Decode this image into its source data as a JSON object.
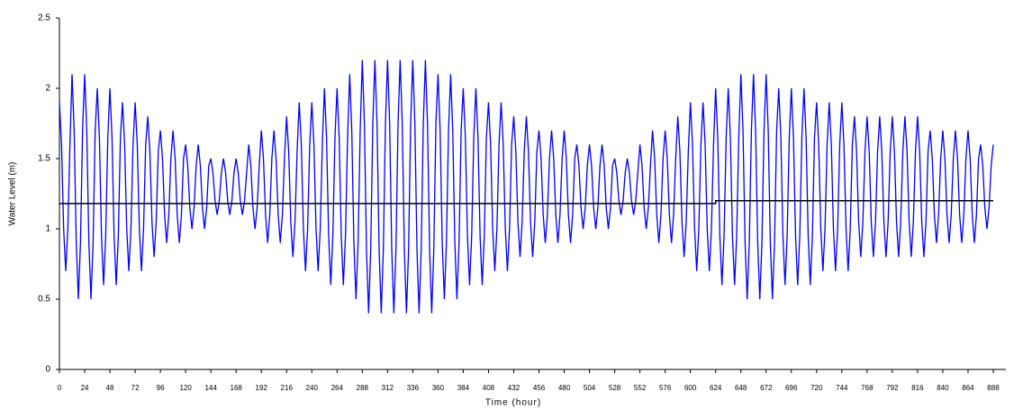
{
  "chart_data": {
    "type": "line",
    "xlabel": "Time (hour)",
    "ylabel": "Water Level (m)",
    "xlim": [
      0,
      900
    ],
    "ylim": [
      0,
      2.5
    ],
    "xticks": [
      0,
      24,
      48,
      72,
      96,
      120,
      144,
      168,
      192,
      216,
      240,
      264,
      288,
      312,
      336,
      360,
      384,
      408,
      432,
      456,
      480,
      504,
      528,
      552,
      576,
      600,
      624,
      648,
      672,
      696,
      720,
      744,
      768,
      792,
      816,
      840,
      864,
      888
    ],
    "yticks": [
      0,
      0.5,
      1,
      1.5,
      2,
      2.5
    ],
    "x": [
      0,
      2,
      4,
      6,
      8,
      10,
      12,
      14,
      16,
      18,
      20,
      22,
      24,
      26,
      28,
      30,
      32,
      34,
      36,
      38,
      40,
      42,
      44,
      46,
      48,
      50,
      52,
      54,
      56,
      58,
      60,
      62,
      64,
      66,
      68,
      70,
      72,
      74,
      76,
      78,
      80,
      82,
      84,
      86,
      88,
      90,
      92,
      94,
      96,
      98,
      100,
      102,
      104,
      106,
      108,
      110,
      112,
      114,
      116,
      118,
      120,
      122,
      124,
      126,
      128,
      130,
      132,
      134,
      136,
      138,
      140,
      142,
      144,
      146,
      148,
      150,
      152,
      154,
      156,
      158,
      160,
      162,
      164,
      166,
      168,
      170,
      172,
      174,
      176,
      178,
      180,
      182,
      184,
      186,
      188,
      190,
      192,
      194,
      196,
      198,
      200,
      202,
      204,
      206,
      208,
      210,
      212,
      214,
      216,
      218,
      220,
      222,
      224,
      226,
      228,
      230,
      232,
      234,
      236,
      238,
      240,
      242,
      244,
      246,
      248,
      250,
      252,
      254,
      256,
      258,
      260,
      262,
      264,
      266,
      268,
      270,
      272,
      274,
      276,
      278,
      280,
      282,
      284,
      286,
      288,
      290,
      292,
      294,
      296,
      298,
      300,
      302,
      304,
      306,
      308,
      310,
      312,
      314,
      316,
      318,
      320,
      322,
      324,
      326,
      328,
      330,
      332,
      334,
      336,
      338,
      340,
      342,
      344,
      346,
      348,
      350,
      352,
      354,
      356,
      358,
      360,
      362,
      364,
      366,
      368,
      370,
      372,
      374,
      376,
      378,
      380,
      382,
      384,
      386,
      388,
      390,
      392,
      394,
      396,
      398,
      400,
      402,
      404,
      406,
      408,
      410,
      412,
      414,
      416,
      418,
      420,
      422,
      424,
      426,
      428,
      430,
      432,
      434,
      436,
      438,
      440,
      442,
      444,
      446,
      448,
      450,
      452,
      454,
      456,
      458,
      460,
      462,
      464,
      466,
      468,
      470,
      472,
      474,
      476,
      478,
      480,
      482,
      484,
      486,
      488,
      490,
      492,
      494,
      496,
      498,
      500,
      502,
      504,
      506,
      508,
      510,
      512,
      514,
      516,
      518,
      520,
      522,
      524,
      526,
      528,
      530,
      532,
      534,
      536,
      538,
      540,
      542,
      544,
      546,
      548,
      550,
      552,
      554,
      556,
      558,
      560,
      562,
      564,
      566,
      568,
      570,
      572,
      574,
      576,
      578,
      580,
      582,
      584,
      586,
      588,
      590,
      592,
      594,
      596,
      598,
      600,
      602,
      604,
      606,
      608,
      610,
      612,
      614,
      616,
      618,
      620,
      622,
      624,
      626,
      628,
      630,
      632,
      634,
      636,
      638,
      640,
      642,
      644,
      646,
      648,
      650,
      652,
      654,
      656,
      658,
      660,
      662,
      664,
      666,
      668,
      670,
      672,
      674,
      676,
      678,
      680,
      682,
      684,
      686,
      688,
      690,
      692,
      694,
      696,
      698,
      700,
      702,
      704,
      706,
      708,
      710,
      712,
      714,
      716,
      718,
      720,
      722,
      724,
      726,
      728,
      730,
      732,
      734,
      736,
      738,
      740,
      742,
      744,
      746,
      748,
      750,
      752,
      754,
      756,
      758,
      760,
      762,
      764,
      766,
      768,
      770,
      772,
      774,
      776,
      778,
      780,
      782,
      784,
      786,
      788,
      790,
      792,
      794,
      796,
      798,
      800,
      802,
      804,
      806,
      808,
      810,
      812,
      814,
      816,
      818,
      820,
      822,
      824,
      826,
      828,
      830,
      832,
      834,
      836,
      838,
      840,
      842,
      844,
      846,
      848,
      850,
      852,
      854,
      856,
      858,
      860,
      862,
      864,
      866,
      868,
      870,
      872,
      874,
      876,
      878,
      880,
      882,
      884,
      886,
      888
    ],
    "series": [
      {
        "color": "#0000ff",
        "values": [
          1.9,
          1.6,
          1,
          0.7,
          1,
          1.6,
          2.1,
          1.7,
          0.9,
          0.5,
          0.9,
          1.7,
          2.1,
          1.7,
          0.9,
          0.5,
          0.9,
          1.7,
          2,
          1.65,
          0.95,
          0.6,
          0.95,
          1.65,
          2,
          1.65,
          0.95,
          0.6,
          0.95,
          1.65,
          1.9,
          1.6,
          1,
          0.7,
          1,
          1.6,
          1.9,
          1.6,
          1,
          0.7,
          1,
          1.6,
          1.8,
          1.55,
          1.05,
          0.8,
          1.05,
          1.55,
          1.7,
          1.5,
          1.1,
          0.9,
          1.1,
          1.5,
          1.7,
          1.5,
          1.1,
          0.9,
          1.1,
          1.5,
          1.6,
          1.45,
          1.15,
          1,
          1.15,
          1.45,
          1.6,
          1.45,
          1.15,
          1,
          1.15,
          1.45,
          1.5,
          1.4,
          1.2,
          1.1,
          1.2,
          1.4,
          1.5,
          1.4,
          1.2,
          1.1,
          1.2,
          1.4,
          1.5,
          1.4,
          1.2,
          1.1,
          1.2,
          1.4,
          1.6,
          1.45,
          1.15,
          1,
          1.15,
          1.45,
          1.7,
          1.5,
          1.1,
          0.9,
          1.1,
          1.5,
          1.7,
          1.5,
          1.1,
          0.9,
          1.1,
          1.5,
          1.8,
          1.55,
          1.05,
          0.8,
          1.05,
          1.55,
          1.9,
          1.6,
          1,
          0.7,
          1,
          1.6,
          1.9,
          1.6,
          1,
          0.7,
          1,
          1.6,
          2,
          1.65,
          0.95,
          0.6,
          0.95,
          1.65,
          2,
          1.65,
          0.95,
          0.6,
          0.95,
          1.65,
          2.1,
          1.7,
          0.9,
          0.5,
          0.9,
          1.7,
          2.2,
          1.75,
          0.85,
          0.4,
          0.85,
          1.75,
          2.2,
          1.75,
          0.85,
          0.4,
          0.85,
          1.75,
          2.2,
          1.75,
          0.85,
          0.4,
          0.85,
          1.75,
          2.2,
          1.75,
          0.85,
          0.4,
          0.85,
          1.75,
          2.2,
          1.75,
          0.85,
          0.4,
          0.85,
          1.75,
          2.2,
          1.75,
          0.85,
          0.4,
          0.85,
          1.75,
          2.1,
          1.7,
          0.9,
          0.5,
          0.9,
          1.7,
          2.1,
          1.7,
          0.9,
          0.5,
          0.9,
          1.7,
          2,
          1.65,
          0.95,
          0.6,
          0.95,
          1.65,
          2,
          1.65,
          0.95,
          0.6,
          0.95,
          1.65,
          1.9,
          1.6,
          1,
          0.7,
          1,
          1.6,
          1.9,
          1.6,
          1,
          0.7,
          1,
          1.6,
          1.8,
          1.55,
          1.05,
          0.8,
          1.05,
          1.55,
          1.8,
          1.55,
          1.05,
          0.8,
          1.05,
          1.55,
          1.7,
          1.5,
          1.1,
          0.9,
          1.1,
          1.5,
          1.7,
          1.5,
          1.1,
          0.9,
          1.1,
          1.5,
          1.7,
          1.5,
          1.1,
          0.9,
          1.1,
          1.5,
          1.6,
          1.45,
          1.15,
          1,
          1.15,
          1.45,
          1.6,
          1.45,
          1.15,
          1,
          1.15,
          1.45,
          1.6,
          1.45,
          1.15,
          1,
          1.15,
          1.45,
          1.5,
          1.4,
          1.2,
          1.1,
          1.2,
          1.4,
          1.5,
          1.4,
          1.2,
          1.1,
          1.2,
          1.4,
          1.6,
          1.45,
          1.15,
          1,
          1.15,
          1.45,
          1.7,
          1.5,
          1.1,
          0.9,
          1.1,
          1.5,
          1.7,
          1.5,
          1.1,
          0.9,
          1.1,
          1.5,
          1.8,
          1.55,
          1.05,
          0.8,
          1.05,
          1.55,
          1.9,
          1.6,
          1,
          0.7,
          1,
          1.6,
          1.9,
          1.6,
          1,
          0.7,
          1,
          1.6,
          2,
          1.65,
          0.95,
          0.6,
          0.95,
          1.65,
          2,
          1.65,
          0.95,
          0.6,
          0.95,
          1.65,
          2.1,
          1.7,
          0.9,
          0.5,
          0.9,
          1.7,
          2.1,
          1.7,
          0.9,
          0.5,
          0.9,
          1.7,
          2.1,
          1.7,
          0.9,
          0.5,
          0.9,
          1.7,
          2,
          1.65,
          0.95,
          0.6,
          0.95,
          1.65,
          2,
          1.65,
          0.95,
          0.6,
          0.95,
          1.65,
          2,
          1.65,
          0.95,
          0.6,
          0.95,
          1.65,
          1.9,
          1.6,
          1,
          0.7,
          1,
          1.6,
          1.9,
          1.6,
          1,
          0.7,
          1,
          1.6,
          1.9,
          1.6,
          1,
          0.7,
          1,
          1.6,
          1.8,
          1.55,
          1.05,
          0.8,
          1.05,
          1.55,
          1.8,
          1.55,
          1.05,
          0.8,
          1.05,
          1.55,
          1.8,
          1.55,
          1.05,
          0.8,
          1.05,
          1.55,
          1.8,
          1.55,
          1.05,
          0.8,
          1.05,
          1.55,
          1.8,
          1.55,
          1.05,
          0.8,
          1.05,
          1.55,
          1.8,
          1.55,
          1.05,
          0.8,
          1.05,
          1.55,
          1.7,
          1.5,
          1.1,
          0.9,
          1.1,
          1.5,
          1.7,
          1.5,
          1.1,
          0.9,
          1.1,
          1.5,
          1.7,
          1.5,
          1.1,
          0.9,
          1.1,
          1.5,
          1.7,
          1.5,
          1.1,
          0.9,
          1.1,
          1.5,
          1.6,
          1.45,
          1.15,
          1,
          1.15,
          1.45,
          1.6
        ]
      }
    ],
    "mean_line": {
      "color": "#000000",
      "x": [
        0,
        624,
        624,
        888
      ],
      "values": [
        1.18,
        1.18,
        1.2,
        1.2
      ]
    }
  }
}
